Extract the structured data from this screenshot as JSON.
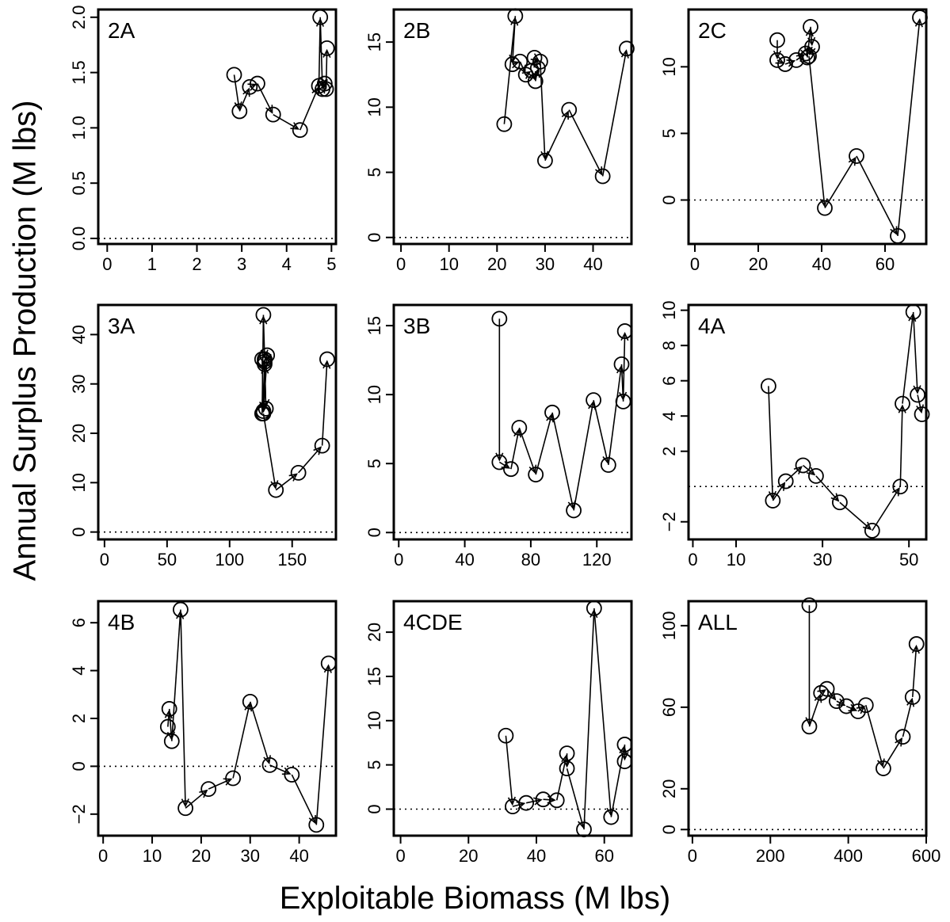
{
  "xlabel": "Exploitable Biomass (M lbs)",
  "ylabel": "Annual Surplus Production (M lbs)",
  "chart_data": [
    {
      "type": "line",
      "label": "2A",
      "xticks": [
        0,
        1,
        2,
        3,
        4,
        5
      ],
      "yticks": [
        "0.0",
        "0.5",
        "1.0",
        "1.5",
        "2.0"
      ],
      "xlim": [
        -0.2,
        5.1
      ],
      "ylim": [
        -0.05,
        2.07
      ],
      "x": [
        2.83,
        2.95,
        3.18,
        3.35,
        3.7,
        4.3,
        4.72,
        4.75,
        4.8,
        4.85,
        4.88,
        4.9
      ],
      "y": [
        1.48,
        1.15,
        1.37,
        1.4,
        1.12,
        0.98,
        1.38,
        2.0,
        1.35,
        1.4,
        1.35,
        1.72
      ]
    },
    {
      "type": "line",
      "label": "2B",
      "xticks": [
        0,
        10,
        20,
        30,
        40
      ],
      "yticks": [
        "0",
        "5",
        "10",
        "15"
      ],
      "xlim": [
        -1.5,
        48
      ],
      "ylim": [
        -0.5,
        17.5
      ],
      "x": [
        21.5,
        23.8,
        23.2,
        24.8,
        26.0,
        27.2,
        28.0,
        28.5,
        27.8,
        29.0,
        30.0,
        35.0,
        42.0,
        47.0
      ],
      "y": [
        8.7,
        17.0,
        13.3,
        13.5,
        12.5,
        12.8,
        12.0,
        13.0,
        13.8,
        13.5,
        5.9,
        9.8,
        4.7,
        14.5
      ]
    },
    {
      "type": "line",
      "label": "2C",
      "xticks": [
        0,
        20,
        40,
        60
      ],
      "yticks": [
        "0",
        "5",
        "10"
      ],
      "xlim": [
        -2,
        73
      ],
      "ylim": [
        -3.3,
        14.3
      ],
      "x": [
        26,
        26,
        28.5,
        32,
        35,
        35.5,
        36.5,
        37,
        36,
        41,
        51,
        64,
        71
      ],
      "y": [
        12,
        10.5,
        10.2,
        10.5,
        11,
        10.7,
        13,
        11.5,
        10.8,
        -0.6,
        3.3,
        -2.7,
        13.7
      ]
    },
    {
      "type": "line",
      "label": "3A",
      "xticks": [
        0,
        50,
        100,
        150
      ],
      "yticks": [
        "0",
        "10",
        "20",
        "30",
        "40"
      ],
      "xlim": [
        -5,
        185
      ],
      "ylim": [
        -1.5,
        46
      ],
      "x": [
        126,
        127,
        128,
        129,
        128,
        126,
        127,
        130,
        128,
        127,
        137,
        155,
        174,
        178
      ],
      "y": [
        24.0,
        44.0,
        35.0,
        25.0,
        34.0,
        35.0,
        24.5,
        35.8,
        34.5,
        24.0,
        8.5,
        12.0,
        17.5,
        35.0
      ],
      "connect": [
        [
          0,
          1
        ],
        [
          1,
          2
        ],
        [
          2,
          3
        ],
        [
          3,
          4
        ],
        [
          4,
          5
        ],
        [
          5,
          6
        ],
        [
          6,
          7
        ],
        [
          7,
          8
        ],
        [
          8,
          9
        ],
        [
          9,
          10
        ],
        [
          10,
          11
        ],
        [
          11,
          12
        ],
        [
          12,
          13
        ]
      ]
    },
    {
      "type": "line",
      "label": "3B",
      "xticks": [
        0,
        40,
        80,
        120
      ],
      "yticks": [
        "0",
        "5",
        "10",
        "15"
      ],
      "xlim": [
        -3,
        141
      ],
      "ylim": [
        -0.5,
        16.5
      ],
      "x": [
        61,
        61,
        68,
        73,
        83,
        93,
        106,
        118,
        127,
        135,
        136,
        137
      ],
      "y": [
        15.5,
        5.1,
        4.6,
        7.6,
        4.2,
        8.7,
        1.6,
        9.6,
        4.9,
        12.2,
        9.5,
        14.6
      ]
    },
    {
      "type": "line",
      "label": "4A",
      "xticks": [
        0,
        10,
        30,
        50
      ],
      "yticks": [
        "−2",
        "2",
        "4",
        "6",
        "8",
        "10"
      ],
      "ytickvals": [
        -2,
        2,
        4,
        6,
        8,
        10
      ],
      "xlim": [
        -1,
        54
      ],
      "ylim": [
        -3.0,
        10.3
      ],
      "x": [
        17.5,
        18.5,
        21.5,
        25.5,
        28.5,
        34,
        41.5,
        48,
        48.5,
        51,
        52,
        53
      ],
      "y": [
        5.7,
        -0.8,
        0.3,
        1.2,
        0.6,
        -0.9,
        -2.5,
        0,
        4.7,
        9.9,
        5.2,
        4.1
      ]
    },
    {
      "type": "line",
      "label": "4B",
      "xticks": [
        0,
        10,
        20,
        30,
        40
      ],
      "yticks": [
        "−2",
        "0",
        "2",
        "4",
        "6"
      ],
      "ytickvals": [
        -2,
        0,
        2,
        4,
        6
      ],
      "xlim": [
        -1,
        47.5
      ],
      "ylim": [
        -2.9,
        6.9
      ],
      "x": [
        13.2,
        13.5,
        14.0,
        15.8,
        16.8,
        21.5,
        26.5,
        30.0,
        34.0,
        38.5,
        43.5,
        46.0
      ],
      "y": [
        1.65,
        2.4,
        1.05,
        6.55,
        -1.75,
        -0.95,
        -0.5,
        2.7,
        0.05,
        -0.35,
        -2.45,
        4.3
      ]
    },
    {
      "type": "line",
      "label": "4CDE",
      "xticks": [
        0,
        20,
        40,
        60
      ],
      "yticks": [
        "0",
        "5",
        "10",
        "15",
        "20"
      ],
      "xlim": [
        -2,
        68
      ],
      "ylim": [
        -3,
        23.5
      ],
      "x": [
        31,
        33,
        37,
        42,
        46,
        49,
        49,
        54,
        57,
        62,
        66,
        66
      ],
      "y": [
        8.3,
        0.3,
        0.7,
        1.1,
        1.0,
        6.3,
        4.6,
        -2.3,
        22.7,
        -0.9,
        7.3,
        5.4
      ]
    },
    {
      "type": "line",
      "label": "ALL",
      "xticks": [
        0,
        200,
        400,
        600
      ],
      "yticks": [
        "0",
        "20",
        "60",
        "100"
      ],
      "ytickvals": [
        0,
        20,
        60,
        100
      ],
      "xlim": [
        -10,
        600
      ],
      "ylim": [
        -3,
        112
      ],
      "x": [
        300,
        300,
        330,
        345,
        370,
        395,
        425,
        445,
        490,
        540,
        565,
        575
      ],
      "y": [
        110,
        50.5,
        67,
        69,
        63,
        60.5,
        58,
        61,
        30,
        45.5,
        65,
        91
      ]
    }
  ]
}
